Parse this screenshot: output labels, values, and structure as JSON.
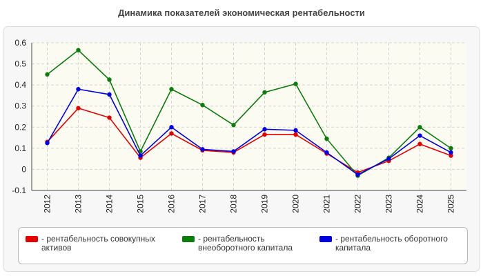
{
  "chart_data": {
    "type": "line",
    "title": "Динамика показателей экономическая рентабельности",
    "x": [
      "2012",
      "2013",
      "2014",
      "2015",
      "2016",
      "2017",
      "2018",
      "2019",
      "2020",
      "2021",
      "2022",
      "2023",
      "2024",
      "2025"
    ],
    "ylim": [
      -0.1,
      0.6
    ],
    "yticks": [
      "0.6",
      "0.5",
      "0.4",
      "0.3",
      "0.2",
      "0.1",
      "0",
      "-0.1"
    ],
    "grid": true,
    "legend_position": "bottom",
    "series": [
      {
        "name": "- рентабельность совокупных активов",
        "color": "#e60000",
        "values": [
          0.13,
          0.29,
          0.245,
          0.055,
          0.17,
          0.09,
          0.08,
          0.165,
          0.165,
          0.075,
          -0.015,
          0.04,
          0.12,
          0.065
        ]
      },
      {
        "name": "- рентабельность внеоборотного капитала",
        "color": "#0a7d0a",
        "values": [
          0.45,
          0.565,
          0.425,
          0.085,
          0.38,
          0.305,
          0.21,
          0.365,
          0.405,
          0.145,
          -0.03,
          0.055,
          0.2,
          0.1
        ]
      },
      {
        "name": "- рентабельность оборотного капитала",
        "color": "#0000e6",
        "values": [
          0.125,
          0.38,
          0.355,
          0.065,
          0.2,
          0.095,
          0.085,
          0.19,
          0.185,
          0.08,
          -0.025,
          0.05,
          0.16,
          0.08
        ]
      }
    ]
  }
}
